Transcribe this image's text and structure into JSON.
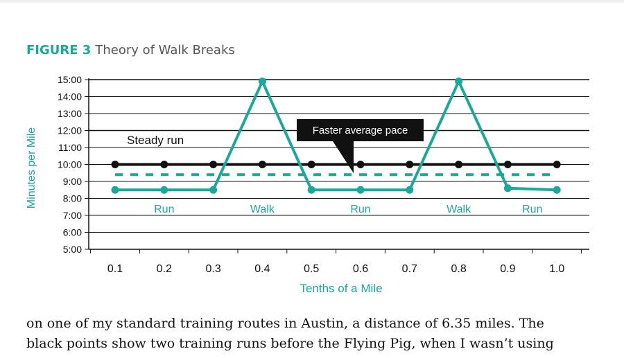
{
  "figure": {
    "label": "FIGURE 3",
    "title": "Theory of Walk Breaks"
  },
  "colors": {
    "accent": "#1aa89a",
    "steady": "#111111",
    "callout_bg": "#111111",
    "callout_text": "#ffffff"
  },
  "chart_data": {
    "type": "line",
    "xlabel": "Tenths of a Mile",
    "ylabel": "Minutes per Mile",
    "categories": [
      "0.1",
      "0.2",
      "0.3",
      "0.4",
      "0.5",
      "0.6",
      "0.7",
      "0.8",
      "0.9",
      "1.0"
    ],
    "y_ticks": [
      "5:00",
      "6:00",
      "7:00",
      "8:00",
      "9:00",
      "10:00",
      "11:00",
      "12:00",
      "13:00",
      "14:00",
      "15:00"
    ],
    "ylim": [
      5,
      15
    ],
    "grid": true,
    "series": [
      {
        "name": "Steady run",
        "color": "#111111",
        "style": "solid",
        "x": [
          0.1,
          0.2,
          0.3,
          0.4,
          0.5,
          0.6,
          0.7,
          0.8,
          0.9,
          1.0
        ],
        "values": [
          10,
          10,
          10,
          10,
          10,
          10,
          10,
          10,
          10,
          10
        ]
      },
      {
        "name": "Run/Walk",
        "color": "#1aa89a",
        "style": "solid",
        "x": [
          0.1,
          0.2,
          0.3,
          0.4,
          0.5,
          0.6,
          0.7,
          0.8,
          0.9,
          1.0
        ],
        "values": [
          8.5,
          8.5,
          8.5,
          14.9,
          8.5,
          8.5,
          8.5,
          14.9,
          8.6,
          8.5
        ]
      },
      {
        "name": "Faster average pace",
        "color": "#1aa89a",
        "style": "dashed",
        "x": [
          0.1,
          1.0
        ],
        "values": [
          9.4,
          9.4
        ]
      }
    ],
    "annotations": {
      "steady_label": "Steady run",
      "callout": "Faster average pace",
      "segments": [
        {
          "label": "Run",
          "x": 0.2
        },
        {
          "label": "Walk",
          "x": 0.4
        },
        {
          "label": "Run",
          "x": 0.6
        },
        {
          "label": "Walk",
          "x": 0.8
        },
        {
          "label": "Run",
          "x": 0.95
        }
      ]
    }
  },
  "body_text": [
    "on one of my standard training routes in Austin, a distance of 6.35 miles. The",
    "black points show two training runs before the Flying Pig, when I wasn’t using"
  ]
}
